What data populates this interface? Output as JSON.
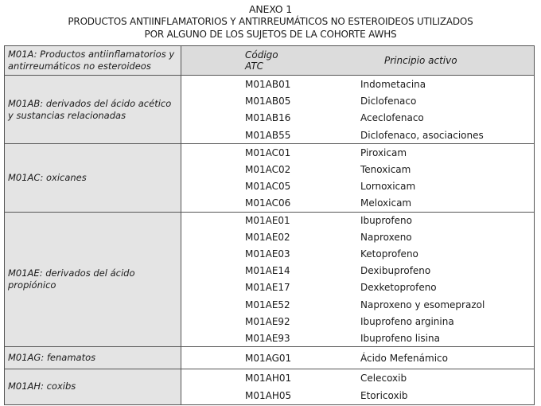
{
  "title": {
    "annex": "ANEXO 1",
    "line1": "PRODUCTOS ANTIINFLAMATORIOS Y ANTIRREUMÁTICOS NO ESTEROIDEOS UTILIZADOS",
    "line2": "POR ALGUNO DE LOS SUJETOS DE LA COHORTE AWHS"
  },
  "header": {
    "group": "M01A:  Productos antiinflamatorios y antirreumáticos no esteroideos",
    "code": "Código ATC",
    "active": "Principio activo"
  },
  "groups": [
    {
      "label": "M01AB: derivados del ácido acético y sustancias relacionadas",
      "rows": [
        {
          "code": "M01AB01",
          "active": "Indometacina"
        },
        {
          "code": "M01AB05",
          "active": "Diclofenaco"
        },
        {
          "code": "M01AB16",
          "active": "Aceclofenaco"
        },
        {
          "code": "M01AB55",
          "active": "Diclofenaco, asociaciones"
        }
      ]
    },
    {
      "label": "M01AC: oxicanes",
      "rows": [
        {
          "code": "M01AC01",
          "active": "Piroxicam"
        },
        {
          "code": "M01AC02",
          "active": "Tenoxicam"
        },
        {
          "code": "M01AC05",
          "active": "Lornoxicam"
        },
        {
          "code": "M01AC06",
          "active": "Meloxicam"
        }
      ]
    },
    {
      "label": "M01AE: derivados del ácido propiónico",
      "rows": [
        {
          "code": "M01AE01",
          "active": "Ibuprofeno"
        },
        {
          "code": "M01AE02",
          "active": "Naproxeno"
        },
        {
          "code": "M01AE03",
          "active": "Ketoprofeno"
        },
        {
          "code": "M01AE14",
          "active": "Dexibuprofeno"
        },
        {
          "code": "M01AE17",
          "active": "Dexketoprofeno"
        },
        {
          "code": "M01AE52",
          "active": "Naproxeno y esomeprazol"
        },
        {
          "code": "M01AE92",
          "active": "Ibuprofeno arginina"
        },
        {
          "code": "M01AE93",
          "active": "Ibuprofeno lisina"
        }
      ]
    },
    {
      "label": "M01AG: fenamatos",
      "rows": [
        {
          "code": "M01AG01",
          "active": "Ácido Mefenámico"
        }
      ]
    },
    {
      "label": "M01AH: coxibs",
      "rows": [
        {
          "code": "M01AH01",
          "active": "Celecoxib"
        },
        {
          "code": "M01AH05",
          "active": "Etoricoxib"
        }
      ]
    }
  ]
}
